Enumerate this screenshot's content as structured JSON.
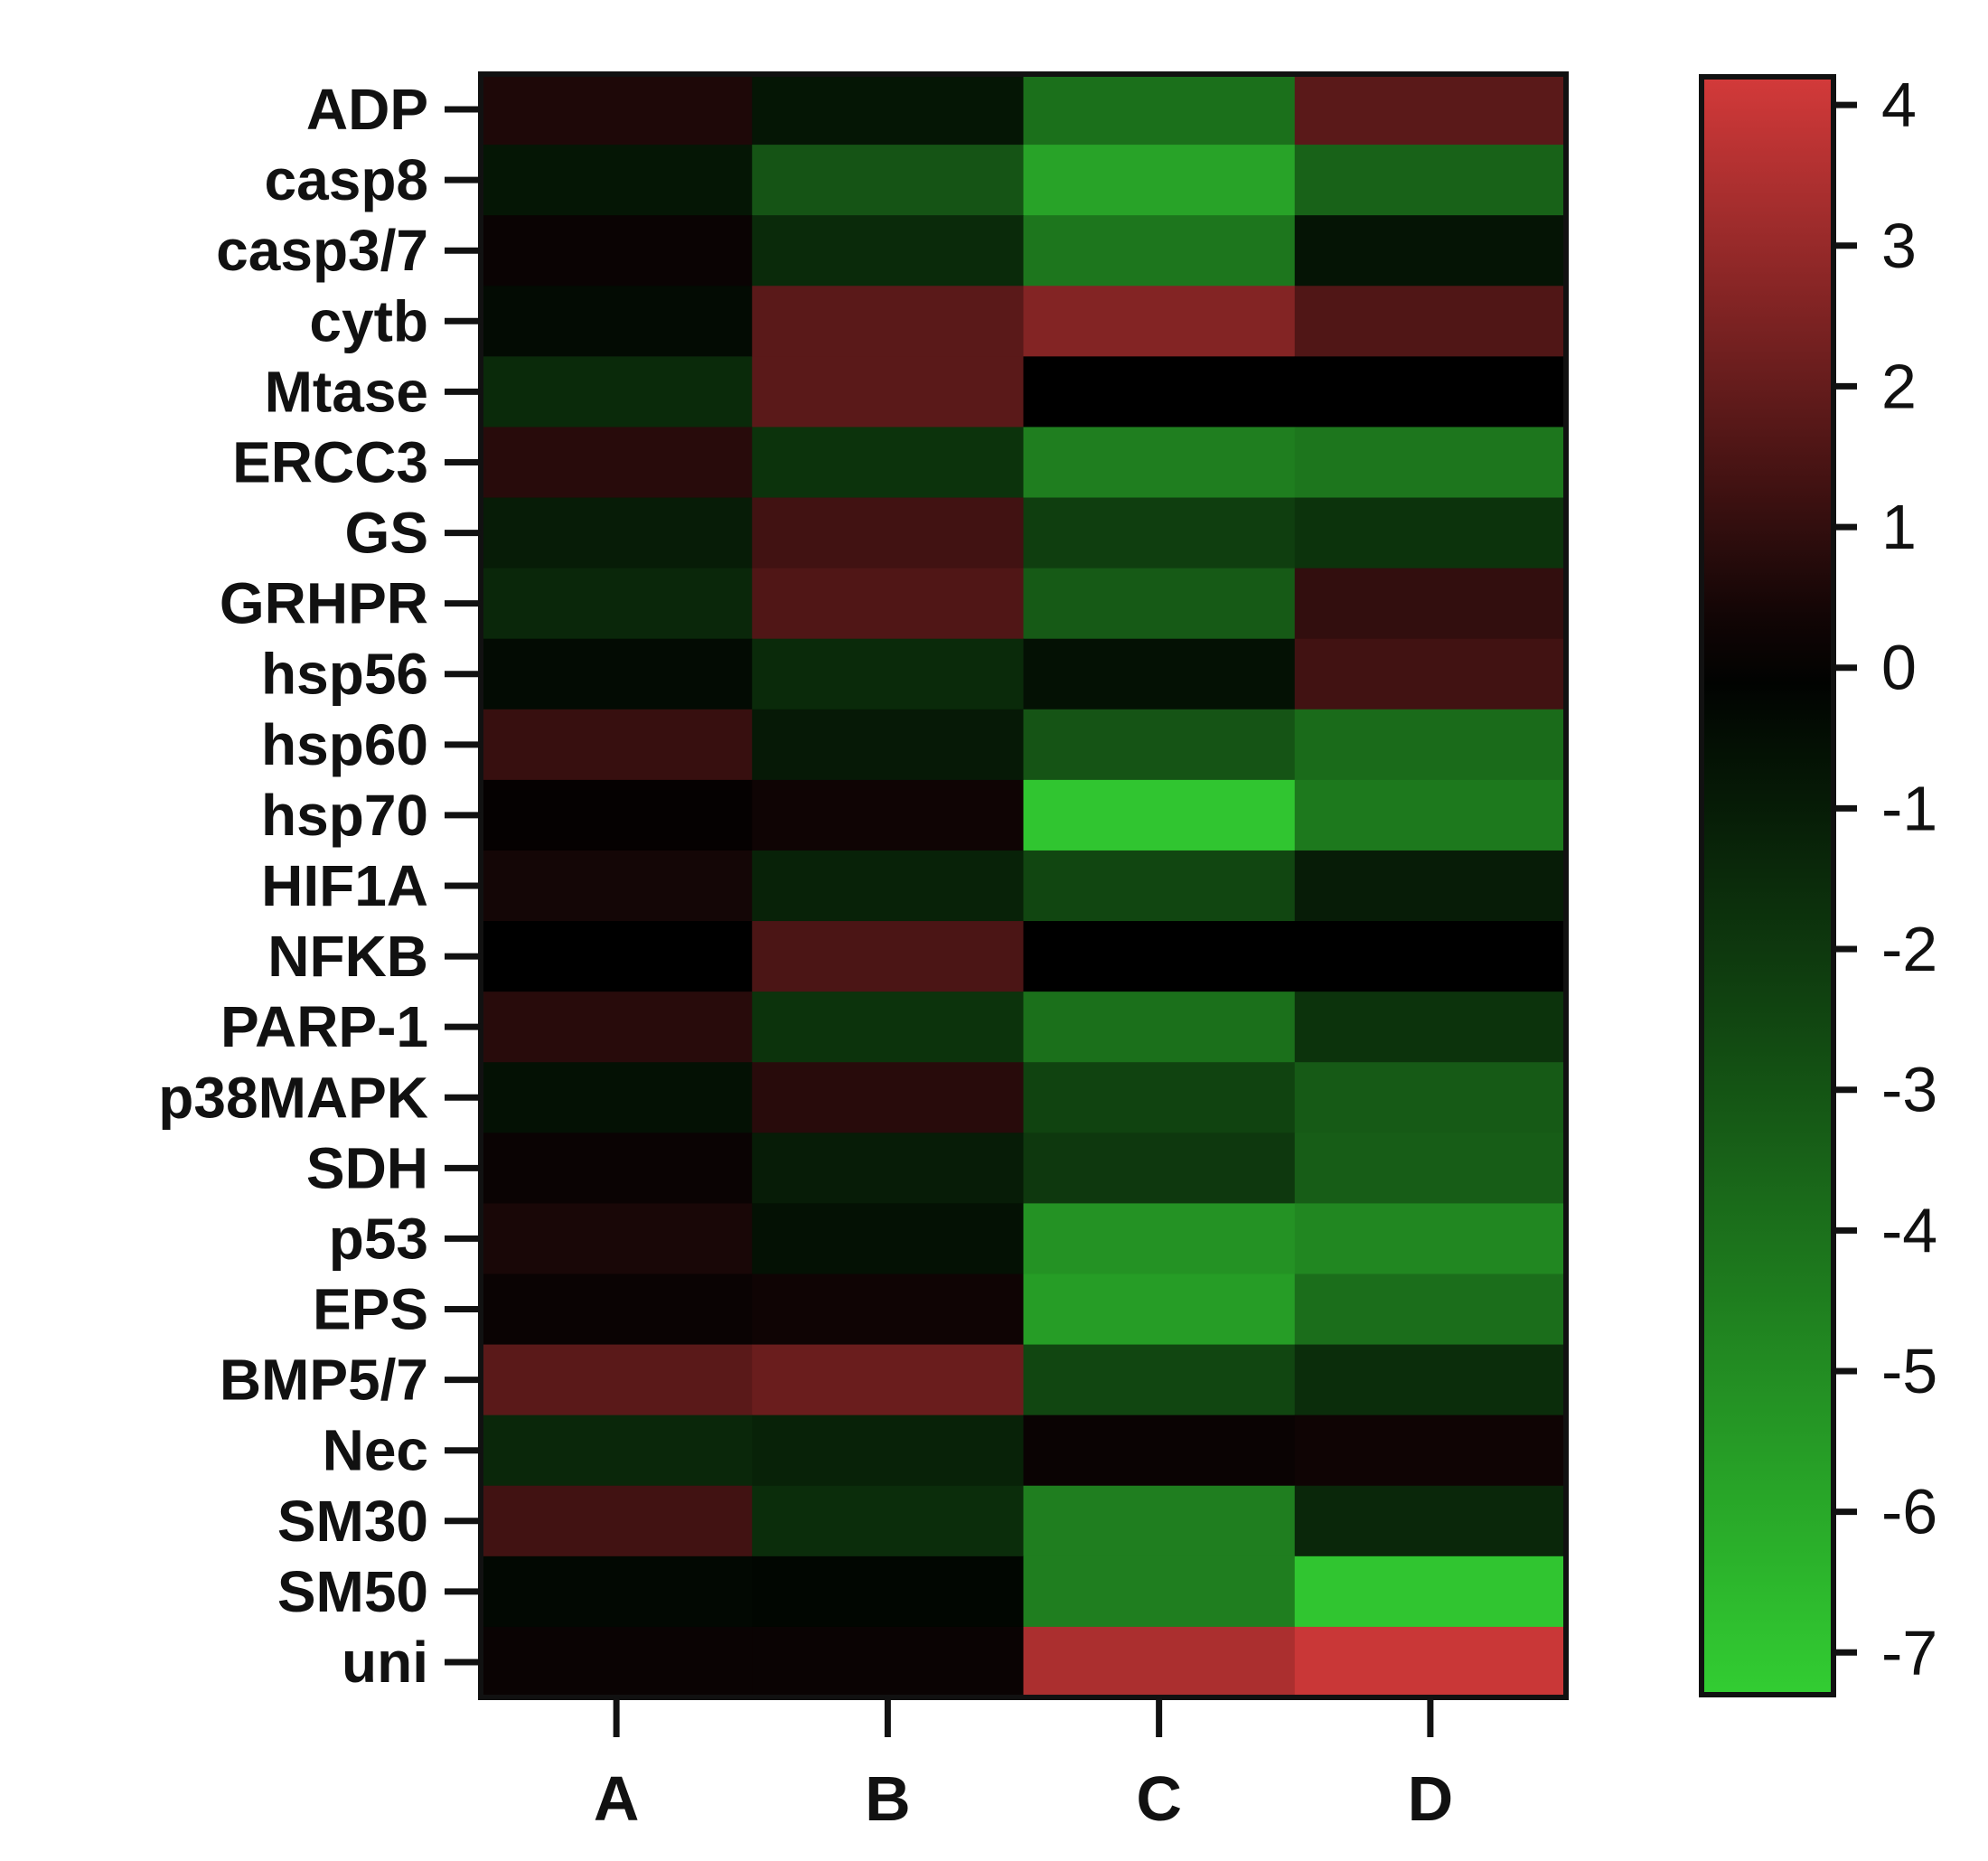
{
  "chart_data": {
    "type": "heatmap",
    "title": "",
    "xlabel": "",
    "ylabel": "",
    "rows": [
      "ADP",
      "casp8",
      "casp3/7",
      "cytb",
      "Mtase",
      "ERCC3",
      "GS",
      "GRHPR",
      "hsp56",
      "hsp60",
      "hsp70",
      "HIF1A",
      "NFKB",
      "PARP-1",
      "p38MAPK",
      "SDH",
      "p53",
      "EPS",
      "BMP5/7",
      "Nec",
      "SM30",
      "SM50",
      "uni"
    ],
    "columns": [
      "A",
      "B",
      "C",
      "D"
    ],
    "values": [
      [
        0.6,
        -0.8,
        -4.0,
        1.8
      ],
      [
        -0.8,
        -3.0,
        -5.8,
        -3.5
      ],
      [
        0.2,
        -1.5,
        -4.2,
        -0.7
      ],
      [
        -0.4,
        1.8,
        2.6,
        1.6
      ],
      [
        -1.5,
        1.8,
        0.0,
        0.0
      ],
      [
        0.8,
        -1.8,
        -4.5,
        -4.2
      ],
      [
        -1.0,
        1.3,
        -2.2,
        -1.8
      ],
      [
        -1.4,
        1.6,
        -3.2,
        1.0
      ],
      [
        -0.4,
        -1.5,
        -0.6,
        1.3
      ],
      [
        1.1,
        -0.9,
        -3.0,
        -3.8
      ],
      [
        0.1,
        0.3,
        -7.0,
        -4.3
      ],
      [
        0.4,
        -1.2,
        -2.5,
        -1.0
      ],
      [
        0.0,
        1.5,
        0.0,
        0.0
      ],
      [
        0.8,
        -1.8,
        -4.0,
        -1.8
      ],
      [
        -0.6,
        0.8,
        -2.4,
        -3.2
      ],
      [
        0.2,
        -1.0,
        -2.0,
        -3.3
      ],
      [
        0.5,
        -0.6,
        -5.2,
        -4.8
      ],
      [
        0.2,
        0.3,
        -5.6,
        -3.9
      ],
      [
        1.8,
        2.1,
        -2.5,
        -1.6
      ],
      [
        -1.4,
        -1.2,
        0.2,
        0.3
      ],
      [
        1.3,
        -1.6,
        -4.5,
        -1.4
      ],
      [
        -0.3,
        -0.2,
        -4.5,
        -7.0
      ],
      [
        0.2,
        0.2,
        3.4,
        4.0
      ]
    ],
    "colorbar": {
      "min": -7.3,
      "max": 4.2,
      "ticks": [
        4,
        3,
        2,
        1,
        0,
        -1,
        -2,
        -3,
        -4,
        -5,
        -6,
        -7
      ],
      "tick_labels": [
        "4",
        "3",
        "2",
        "1",
        "0",
        "-1",
        "-2",
        "-3",
        "-4",
        "-5",
        "-6",
        "-7"
      ],
      "colors": {
        "low": "#32cd32",
        "mid": "#000000",
        "high": "#d33a3a"
      }
    },
    "grid": false,
    "legend": "right"
  }
}
